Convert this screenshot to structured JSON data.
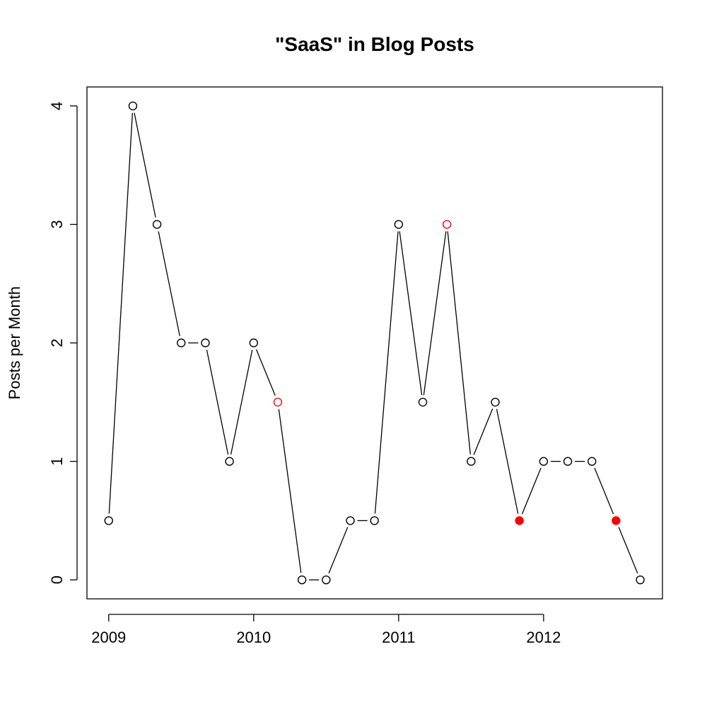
{
  "chart_data": {
    "type": "line",
    "title": "\"SaaS\" in Blog Posts",
    "xlabel": "",
    "ylabel": "Posts per Month",
    "x_ticks": [
      "2009",
      "2010",
      "2011",
      "2012"
    ],
    "y_ticks": [
      "0",
      "1",
      "2",
      "3",
      "4"
    ],
    "xlim": [
      2008.85,
      2012.82
    ],
    "ylim": [
      -0.16,
      4.16
    ],
    "grid": false,
    "colors": {
      "line": "#000000",
      "point": "#000000",
      "highlight": "#ff0000"
    },
    "series": [
      {
        "x": [
          2009.0,
          2009.1667,
          2009.3333,
          2009.5,
          2009.6667,
          2009.8333,
          2010.0,
          2010.1667,
          2010.3333,
          2010.5,
          2010.6667,
          2010.8333,
          2011.0,
          2011.1667,
          2011.3333,
          2011.5,
          2011.6667,
          2011.8333,
          2012.0,
          2012.1667,
          2012.3333,
          2012.5,
          2012.6667
        ],
        "y": [
          0.5,
          4,
          3,
          2,
          2,
          1,
          2,
          1.5,
          0,
          0,
          0.5,
          0.5,
          3,
          1.5,
          3,
          1,
          1.5,
          0.5,
          1,
          1,
          1,
          0.5,
          0
        ],
        "style": [
          "open",
          "open",
          "open",
          "open",
          "open",
          "open",
          "open",
          "open-red",
          "open",
          "open",
          "open",
          "open",
          "open",
          "open",
          "open-red",
          "open",
          "open",
          "filled-red",
          "open",
          "open",
          "open",
          "filled-red",
          "open"
        ]
      }
    ]
  }
}
